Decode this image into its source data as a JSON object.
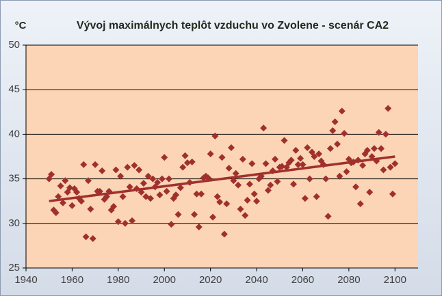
{
  "chart_data": {
    "type": "scatter",
    "title": "Vývoj maximálnych teplôt vzduchu vo Zvolene - scenár CA2",
    "y_label": "°C",
    "xlim": [
      1940,
      2110
    ],
    "xticks": [
      1940,
      1960,
      1980,
      2000,
      2020,
      2040,
      2060,
      2080,
      2100
    ],
    "ylim": [
      25,
      50
    ],
    "yticks": [
      25,
      30,
      35,
      40,
      45,
      50
    ],
    "grid": true,
    "series": [
      {
        "color": "#a0302e",
        "x": [
          1950,
          1951,
          1952,
          1953,
          1954,
          1955,
          1956,
          1957,
          1958,
          1959,
          1960,
          1961,
          1962,
          1963,
          1964,
          1965,
          1966,
          1967,
          1968,
          1969,
          1970,
          1971,
          1972,
          1973,
          1974,
          1975,
          1976,
          1977,
          1978,
          1979,
          1980,
          1981,
          1982,
          1983,
          1984,
          1985,
          1986,
          1987,
          1988,
          1989,
          1990,
          1991,
          1992,
          1993,
          1994,
          1995,
          1996,
          1997,
          1998,
          1999,
          2000,
          2001,
          2002,
          2003,
          2004,
          2005,
          2006,
          2007,
          2008,
          2009,
          2010,
          2011,
          2012,
          2013,
          2014,
          2015,
          2016,
          2017,
          2018,
          2019,
          2020,
          2021,
          2022,
          2023,
          2024,
          2025,
          2026,
          2027,
          2028,
          2029,
          2030,
          2031,
          2032,
          2033,
          2034,
          2035,
          2036,
          2037,
          2038,
          2039,
          2040,
          2041,
          2042,
          2043,
          2044,
          2045,
          2046,
          2047,
          2048,
          2049,
          2050,
          2051,
          2052,
          2053,
          2054,
          2055,
          2056,
          2057,
          2058,
          2059,
          2060,
          2061,
          2062,
          2063,
          2064,
          2065,
          2066,
          2067,
          2068,
          2069,
          2070,
          2071,
          2072,
          2073,
          2074,
          2075,
          2076,
          2077,
          2078,
          2079,
          2080,
          2081,
          2082,
          2083,
          2084,
          2085,
          2086,
          2087,
          2088,
          2089,
          2090,
          2091,
          2092,
          2093,
          2094,
          2095,
          2096,
          2097,
          2098,
          2099,
          2100
        ],
        "values": [
          35.0,
          35.5,
          31.5,
          31.2,
          33.0,
          34.2,
          32.3,
          34.8,
          33.5,
          34.0,
          32.0,
          33.9,
          33.5,
          32.8,
          32.5,
          36.6,
          28.5,
          34.8,
          31.6,
          28.3,
          36.6,
          33.6,
          33.6,
          35.9,
          32.7,
          33.0,
          33.6,
          31.5,
          31.9,
          36.0,
          30.2,
          35.3,
          33.0,
          30.0,
          36.3,
          34.1,
          30.3,
          36.5,
          33.9,
          36.0,
          33.5,
          34.5,
          33.0,
          35.3,
          32.8,
          35.0,
          34.1,
          34.6,
          33.2,
          35.0,
          37.4,
          33.6,
          35.0,
          29.9,
          32.8,
          33.2,
          31.0,
          34.0,
          36.3,
          37.6,
          36.8,
          34.6,
          36.9,
          31.0,
          33.3,
          29.6,
          33.3,
          35.1,
          35.3,
          35.1,
          37.8,
          30.7,
          39.8,
          33.0,
          32.4,
          37.4,
          28.8,
          32.2,
          36.2,
          38.5,
          34.8,
          35.6,
          34.3,
          31.6,
          37.2,
          30.9,
          32.6,
          34.4,
          36.7,
          33.3,
          32.5,
          35.0,
          35.3,
          40.7,
          36.7,
          33.7,
          34.3,
          35.9,
          37.2,
          34.7,
          36.3,
          36.4,
          39.3,
          36.3,
          36.8,
          37.1,
          34.4,
          38.2,
          36.6,
          37.3,
          36.6,
          32.8,
          38.5,
          35.0,
          38.0,
          37.5,
          33.0,
          37.8,
          37.0,
          36.6,
          35.0,
          30.8,
          38.4,
          40.4,
          41.4,
          38.9,
          35.3,
          42.6,
          40.1,
          35.8,
          37.2,
          36.8,
          36.9,
          34.1,
          37.1,
          32.2,
          36.5,
          37.8,
          38.2,
          33.5,
          37.5,
          38.4,
          37.0,
          40.2,
          38.4,
          36.0,
          40.0,
          42.9,
          36.3,
          33.3,
          36.7
        ]
      }
    ],
    "trend": {
      "color": "#a0302e",
      "x": [
        1950,
        2100
      ],
      "values": [
        32.5,
        37.5
      ]
    }
  }
}
